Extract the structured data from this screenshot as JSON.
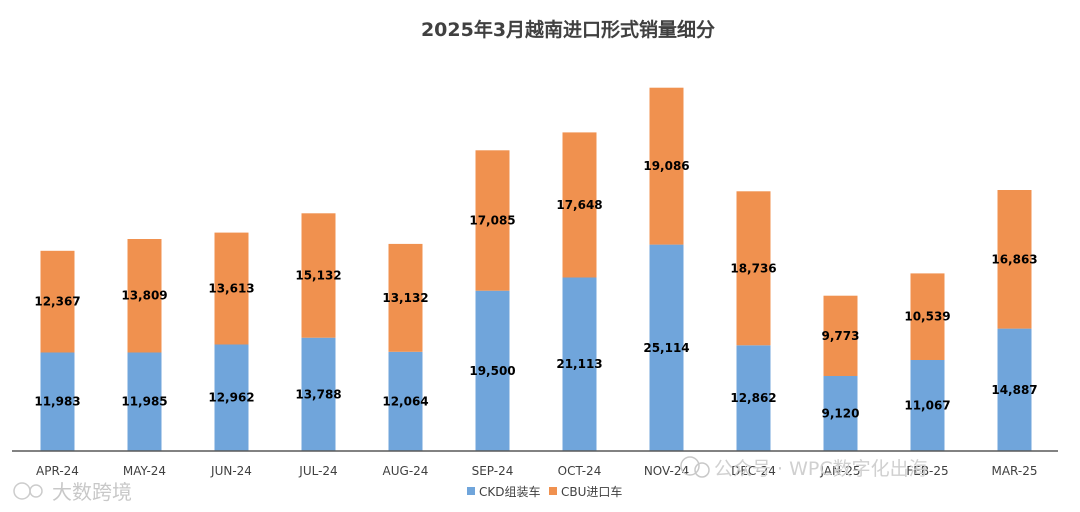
{
  "chart_data": {
    "type": "bar",
    "stacked": true,
    "title": "2025年3月越南进口形式销量细分",
    "categories": [
      "APR-24",
      "MAY-24",
      "JUN-24",
      "JUL-24",
      "AUG-24",
      "SEP-24",
      "OCT-24",
      "NOV-24",
      "DEC-24",
      "JAN-25",
      "FEB-25",
      "MAR-25"
    ],
    "series": [
      {
        "name": "CKD组装车",
        "color": "#70a5db",
        "values": [
          11983,
          11985,
          12962,
          13788,
          12064,
          19500,
          21113,
          25114,
          12862,
          9120,
          11067,
          14887
        ],
        "labels": [
          "11,983",
          "11,985",
          "12,962",
          "13,788",
          "12,064",
          "19,500",
          "21,113",
          "25,114",
          "12,862",
          "9,120",
          "11,067",
          "14,887"
        ]
      },
      {
        "name": "CBU进口车",
        "color": "#f0914f",
        "values": [
          12367,
          13809,
          13613,
          15132,
          13132,
          17085,
          17648,
          19086,
          18736,
          9773,
          10539,
          16863
        ],
        "labels": [
          "12,367",
          "13,809",
          "13,613",
          "15,132",
          "13,132",
          "17,085",
          "17,648",
          "19,086",
          "18,736",
          "9,773",
          "10,539",
          "16,863"
        ]
      }
    ],
    "ylim": [
      0,
      50000
    ],
    "legend_position": "bottom",
    "grid": false
  },
  "watermarks": {
    "left": "大数跨境",
    "right": "公众号 · WPC数字化出海"
  }
}
